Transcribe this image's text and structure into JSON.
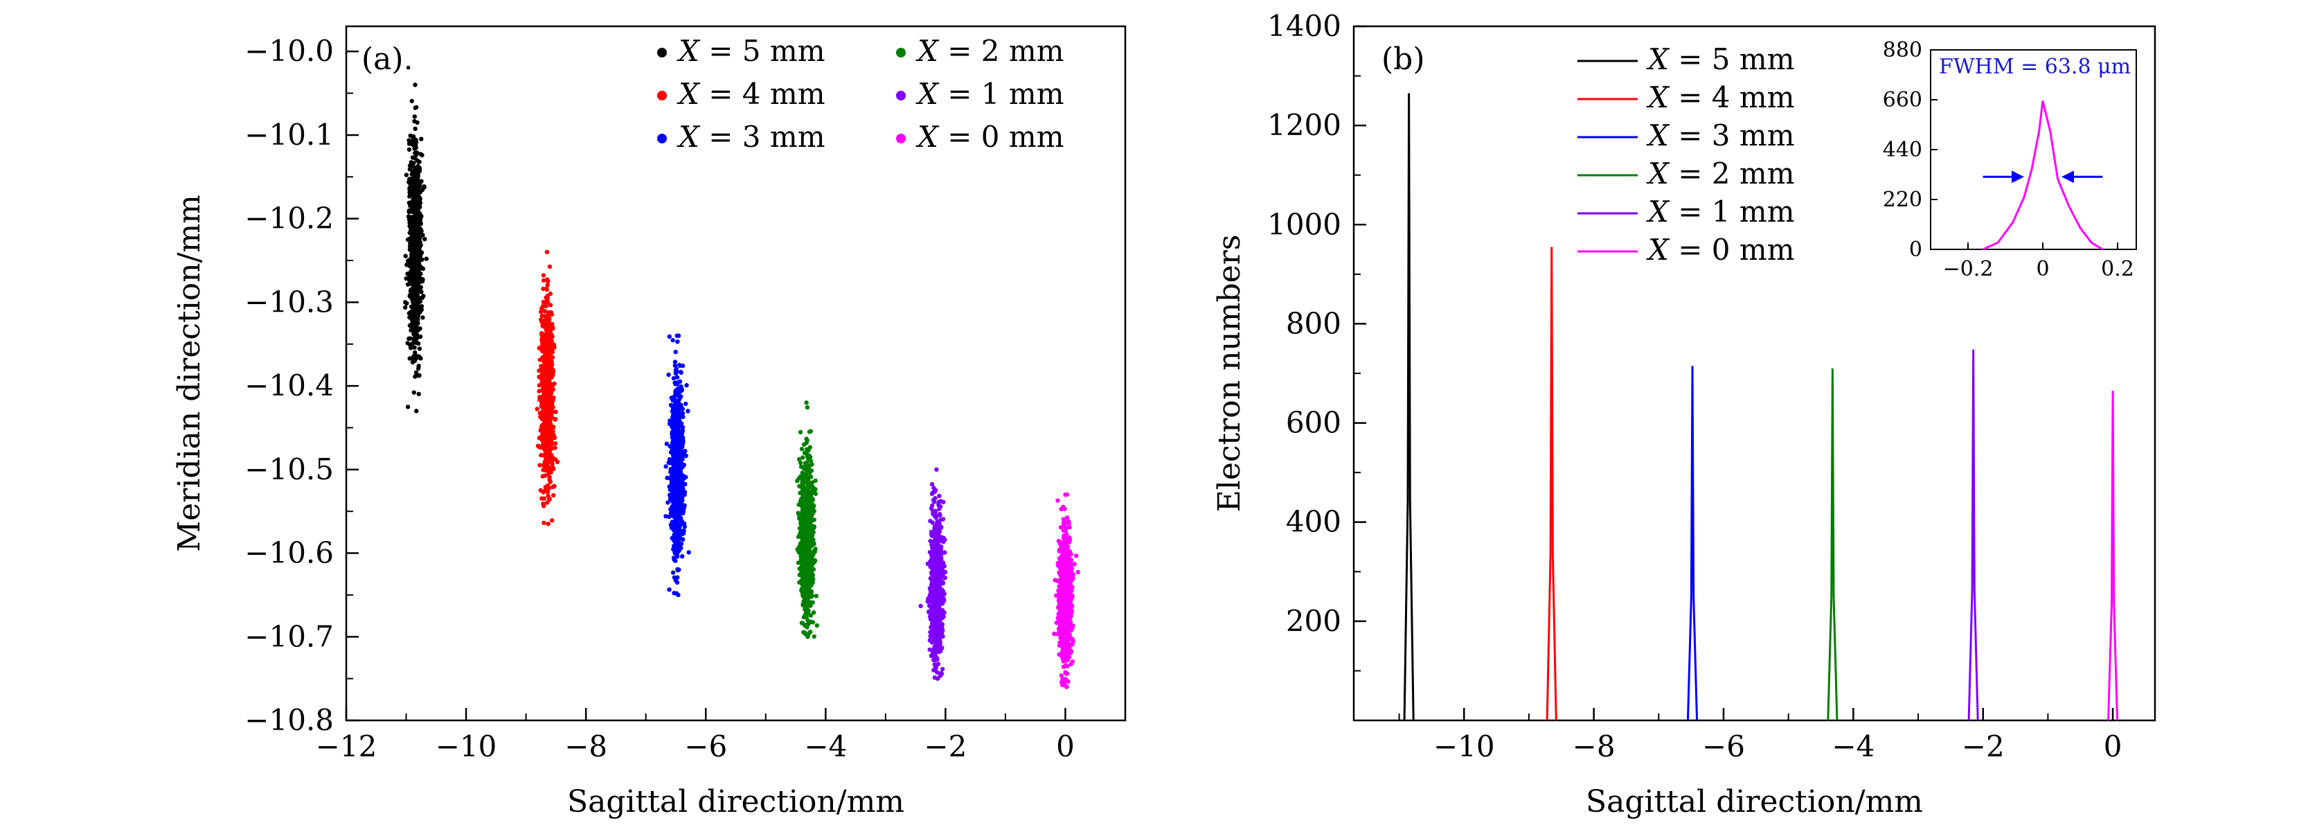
{
  "chart_data": [
    {
      "panel": "a",
      "type": "scatter",
      "panel_label": "(a).",
      "xlabel": "Sagittal direction/mm",
      "ylabel": "Meridian direction/mm",
      "xlim": [
        -12,
        1
      ],
      "ylim": [
        -10.8,
        -9.97
      ],
      "xticks": [
        -12,
        -10,
        -8,
        -6,
        -4,
        -2,
        0
      ],
      "xtick_labels": [
        "−12",
        "−10",
        "−8",
        "−6",
        "−4",
        "−2",
        "0"
      ],
      "yticks": [
        -10.0,
        -10.1,
        -10.2,
        -10.3,
        -10.4,
        -10.5,
        -10.6,
        -10.7,
        -10.8
      ],
      "ytick_labels": [
        "−10.0",
        "−10.1",
        "−10.2",
        "−10.3",
        "−10.4",
        "−10.5",
        "−10.6",
        "−10.7",
        "−10.8"
      ],
      "legend_position": "top-right",
      "series": [
        {
          "name": "X = 5 mm",
          "var": "X",
          "rest": " = 5 mm",
          "color": "#000000",
          "x_center": -10.85,
          "x_spread": 0.09,
          "y_center": -10.235,
          "y_min": -10.43,
          "y_max": -10.04
        },
        {
          "name": "X = 4 mm",
          "var": "X",
          "rest": " = 4 mm",
          "color": "#ff0000",
          "x_center": -8.65,
          "x_spread": 0.09,
          "y_center": -10.41,
          "y_min": -10.565,
          "y_max": -10.24
        },
        {
          "name": "X = 3 mm",
          "var": "X",
          "rest": " = 3 mm",
          "color": "#0000ff",
          "x_center": -6.48,
          "x_spread": 0.1,
          "y_center": -10.5,
          "y_min": -10.65,
          "y_max": -10.34
        },
        {
          "name": "X = 2 mm",
          "var": "X",
          "rest": " = 2 mm",
          "color": "#007f00",
          "x_center": -4.32,
          "x_spread": 0.1,
          "y_center": -10.58,
          "y_min": -10.7,
          "y_max": -10.42
        },
        {
          "name": "X = 1 mm",
          "var": "X",
          "rest": " = 1 mm",
          "color": "#7f00ff",
          "x_center": -2.15,
          "x_spread": 0.1,
          "y_center": -10.64,
          "y_min": -10.75,
          "y_max": -10.5
        },
        {
          "name": "X = 0 mm",
          "var": "X",
          "rest": " = 0 mm",
          "color": "#ff00ff",
          "x_center": 0.0,
          "x_spread": 0.1,
          "y_center": -10.655,
          "y_min": -10.76,
          "y_max": -10.53
        }
      ]
    },
    {
      "panel": "b",
      "type": "line",
      "panel_label": "(b)",
      "xlabel": "Sagittal direction/mm",
      "ylabel": "Electron numbers",
      "xlim": [
        -11.7,
        0.65
      ],
      "ylim": [
        0,
        1400
      ],
      "xticks": [
        -10,
        -8,
        -6,
        -4,
        -2,
        0
      ],
      "xtick_labels": [
        "−10",
        "−8",
        "−6",
        "−4",
        "−2",
        "0"
      ],
      "yticks": [
        200,
        400,
        600,
        800,
        1000,
        1200,
        1400
      ],
      "ytick_labels": [
        "200",
        "400",
        "600",
        "800",
        "1000",
        "1200",
        "1400"
      ],
      "legend_position": "top-center",
      "peak_half_width_mm": 0.07,
      "series": [
        {
          "name": "X = 5 mm",
          "var": "X",
          "rest": " = 5 mm",
          "color": "#000000",
          "peak_x": -10.85,
          "peak_y": 1265
        },
        {
          "name": "X = 4 mm",
          "var": "X",
          "rest": " = 4 mm",
          "color": "#ff0000",
          "peak_x": -8.65,
          "peak_y": 955
        },
        {
          "name": "X = 3 mm",
          "var": "X",
          "rest": " = 3 mm",
          "color": "#0000ff",
          "peak_x": -6.48,
          "peak_y": 715
        },
        {
          "name": "X = 2 mm",
          "var": "X",
          "rest": " = 2 mm",
          "color": "#007f00",
          "peak_x": -4.32,
          "peak_y": 710
        },
        {
          "name": "X = 1 mm",
          "var": "X",
          "rest": " = 1 mm",
          "color": "#7f00ff",
          "peak_x": -2.15,
          "peak_y": 748
        },
        {
          "name": "X = 0 mm",
          "var": "X",
          "rest": " = 0 mm",
          "color": "#ff00ff",
          "peak_x": 0.0,
          "peak_y": 665
        }
      ],
      "inset": {
        "type": "line",
        "label": "FWHM = 63.8 μm",
        "xlim": [
          -0.3,
          0.25
        ],
        "ylim": [
          0,
          880
        ],
        "xticks": [
          -0.2,
          0,
          0.2
        ],
        "xtick_labels": [
          "−0.2",
          "0",
          "0.2"
        ],
        "yticks": [
          0,
          220,
          440,
          660,
          880
        ],
        "ytick_labels": [
          "0",
          "220",
          "440",
          "660",
          "880"
        ],
        "color": "#ff00ff",
        "arrow_color": "#0000ff",
        "arrow_y": 320,
        "x": [
          -0.16,
          -0.12,
          -0.08,
          -0.05,
          -0.03,
          -0.01,
          0.0,
          0.02,
          0.04,
          0.07,
          0.1,
          0.13,
          0.16
        ],
        "y": [
          0,
          30,
          120,
          230,
          350,
          520,
          655,
          520,
          310,
          190,
          95,
          30,
          0
        ]
      }
    }
  ]
}
